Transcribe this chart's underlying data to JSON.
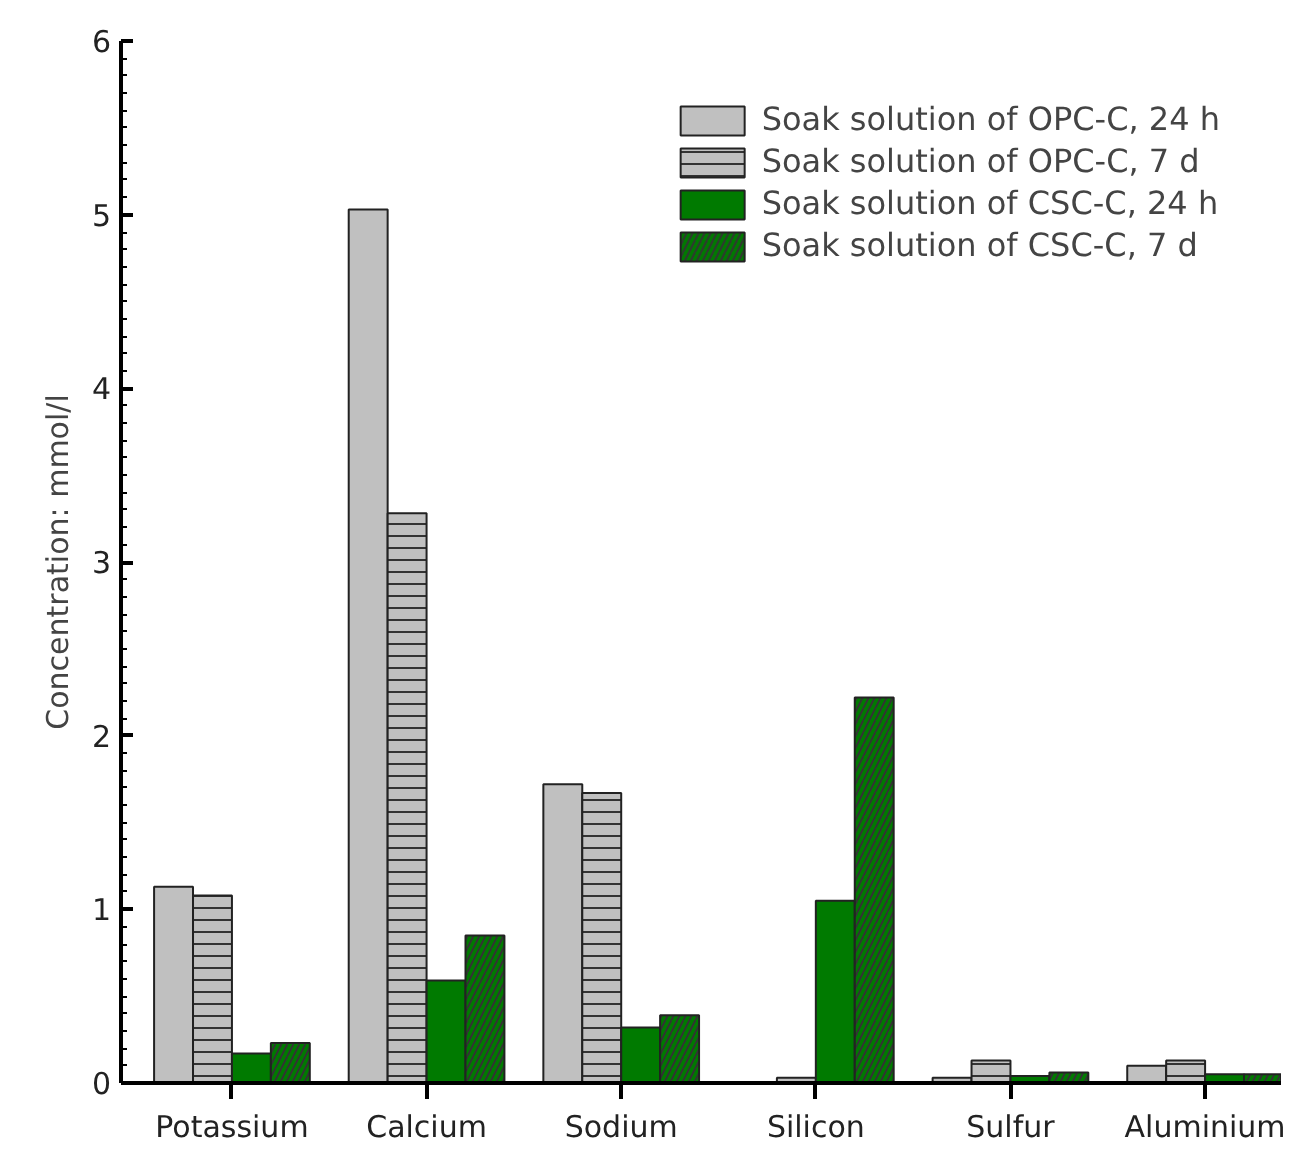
{
  "chart_data": {
    "type": "bar",
    "ylabel": "Concentration: mmol/l",
    "categories": [
      "Potassium",
      "Calcium",
      "Sodium",
      "Silicon",
      "Sulfur",
      "Aluminium"
    ],
    "series": [
      {
        "name": "Soak solution of OPC-C, 24 h",
        "color": "#c0c0c0",
        "values": [
          1.13,
          5.03,
          1.72,
          null,
          0.03,
          0.1
        ]
      },
      {
        "name": "Soak solution of OPC-C, 7 d",
        "color": "#c0c0c0",
        "values": [
          1.08,
          3.28,
          1.67,
          0.03,
          0.13,
          0.13
        ]
      },
      {
        "name": "Soak solution of CSC-C, 24 h",
        "color": "#007a00",
        "values": [
          0.17,
          0.59,
          0.32,
          1.05,
          0.04,
          0.05
        ]
      },
      {
        "name": "Soak solution of CSC-C, 7 d",
        "color": "#007a00",
        "values": [
          0.23,
          0.85,
          0.39,
          2.22,
          0.06,
          0.05
        ]
      }
    ],
    "ylim": [
      0,
      6
    ],
    "yticks": [
      0,
      1,
      2,
      3,
      4,
      5,
      6
    ],
    "grid": false,
    "legend": "top right"
  }
}
